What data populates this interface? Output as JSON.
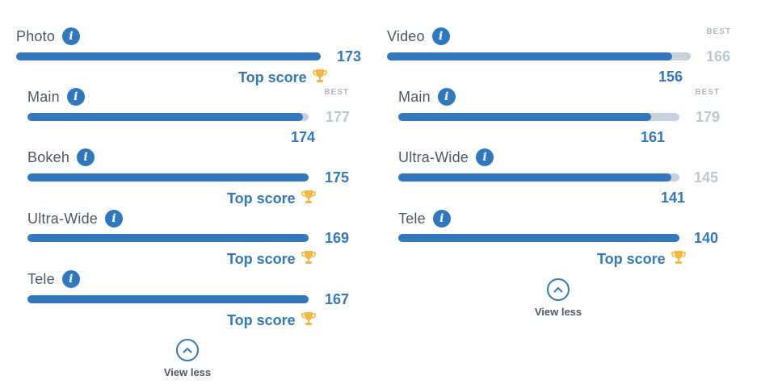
{
  "left": {
    "photo": {
      "label": "Photo",
      "score": "173",
      "top_score": "Top score",
      "fill_pct": 100
    },
    "main": {
      "label": "Main",
      "best_tag": "BEST",
      "best": "177",
      "score": "174",
      "fill_pct": 98
    },
    "bokeh": {
      "label": "Bokeh",
      "score": "175",
      "top_score": "Top score",
      "fill_pct": 100
    },
    "ultrawide": {
      "label": "Ultra-Wide",
      "score": "169",
      "top_score": "Top score",
      "fill_pct": 100
    },
    "tele": {
      "label": "Tele",
      "score": "167",
      "top_score": "Top score",
      "fill_pct": 100
    },
    "view_less": "View less"
  },
  "right": {
    "video": {
      "label": "Video",
      "best_tag": "BEST",
      "best": "166",
      "score": "156",
      "fill_pct": 94
    },
    "main": {
      "label": "Main",
      "best_tag": "BEST",
      "best": "179",
      "score": "161",
      "fill_pct": 90
    },
    "ultrawide": {
      "label": "Ultra-Wide",
      "best": "145",
      "score": "141",
      "fill_pct": 97
    },
    "tele": {
      "label": "Tele",
      "score": "140",
      "top_score": "Top score",
      "fill_pct": 100
    },
    "view_less": "View less"
  },
  "icons": {
    "info": "info-icon",
    "trophy": "trophy-icon",
    "chevron": "chevron-up-icon"
  },
  "colors": {
    "accent": "#3378bd",
    "track": "#c8d0dd",
    "trophy": "#f1b942",
    "muted": "#bfc6d3"
  }
}
